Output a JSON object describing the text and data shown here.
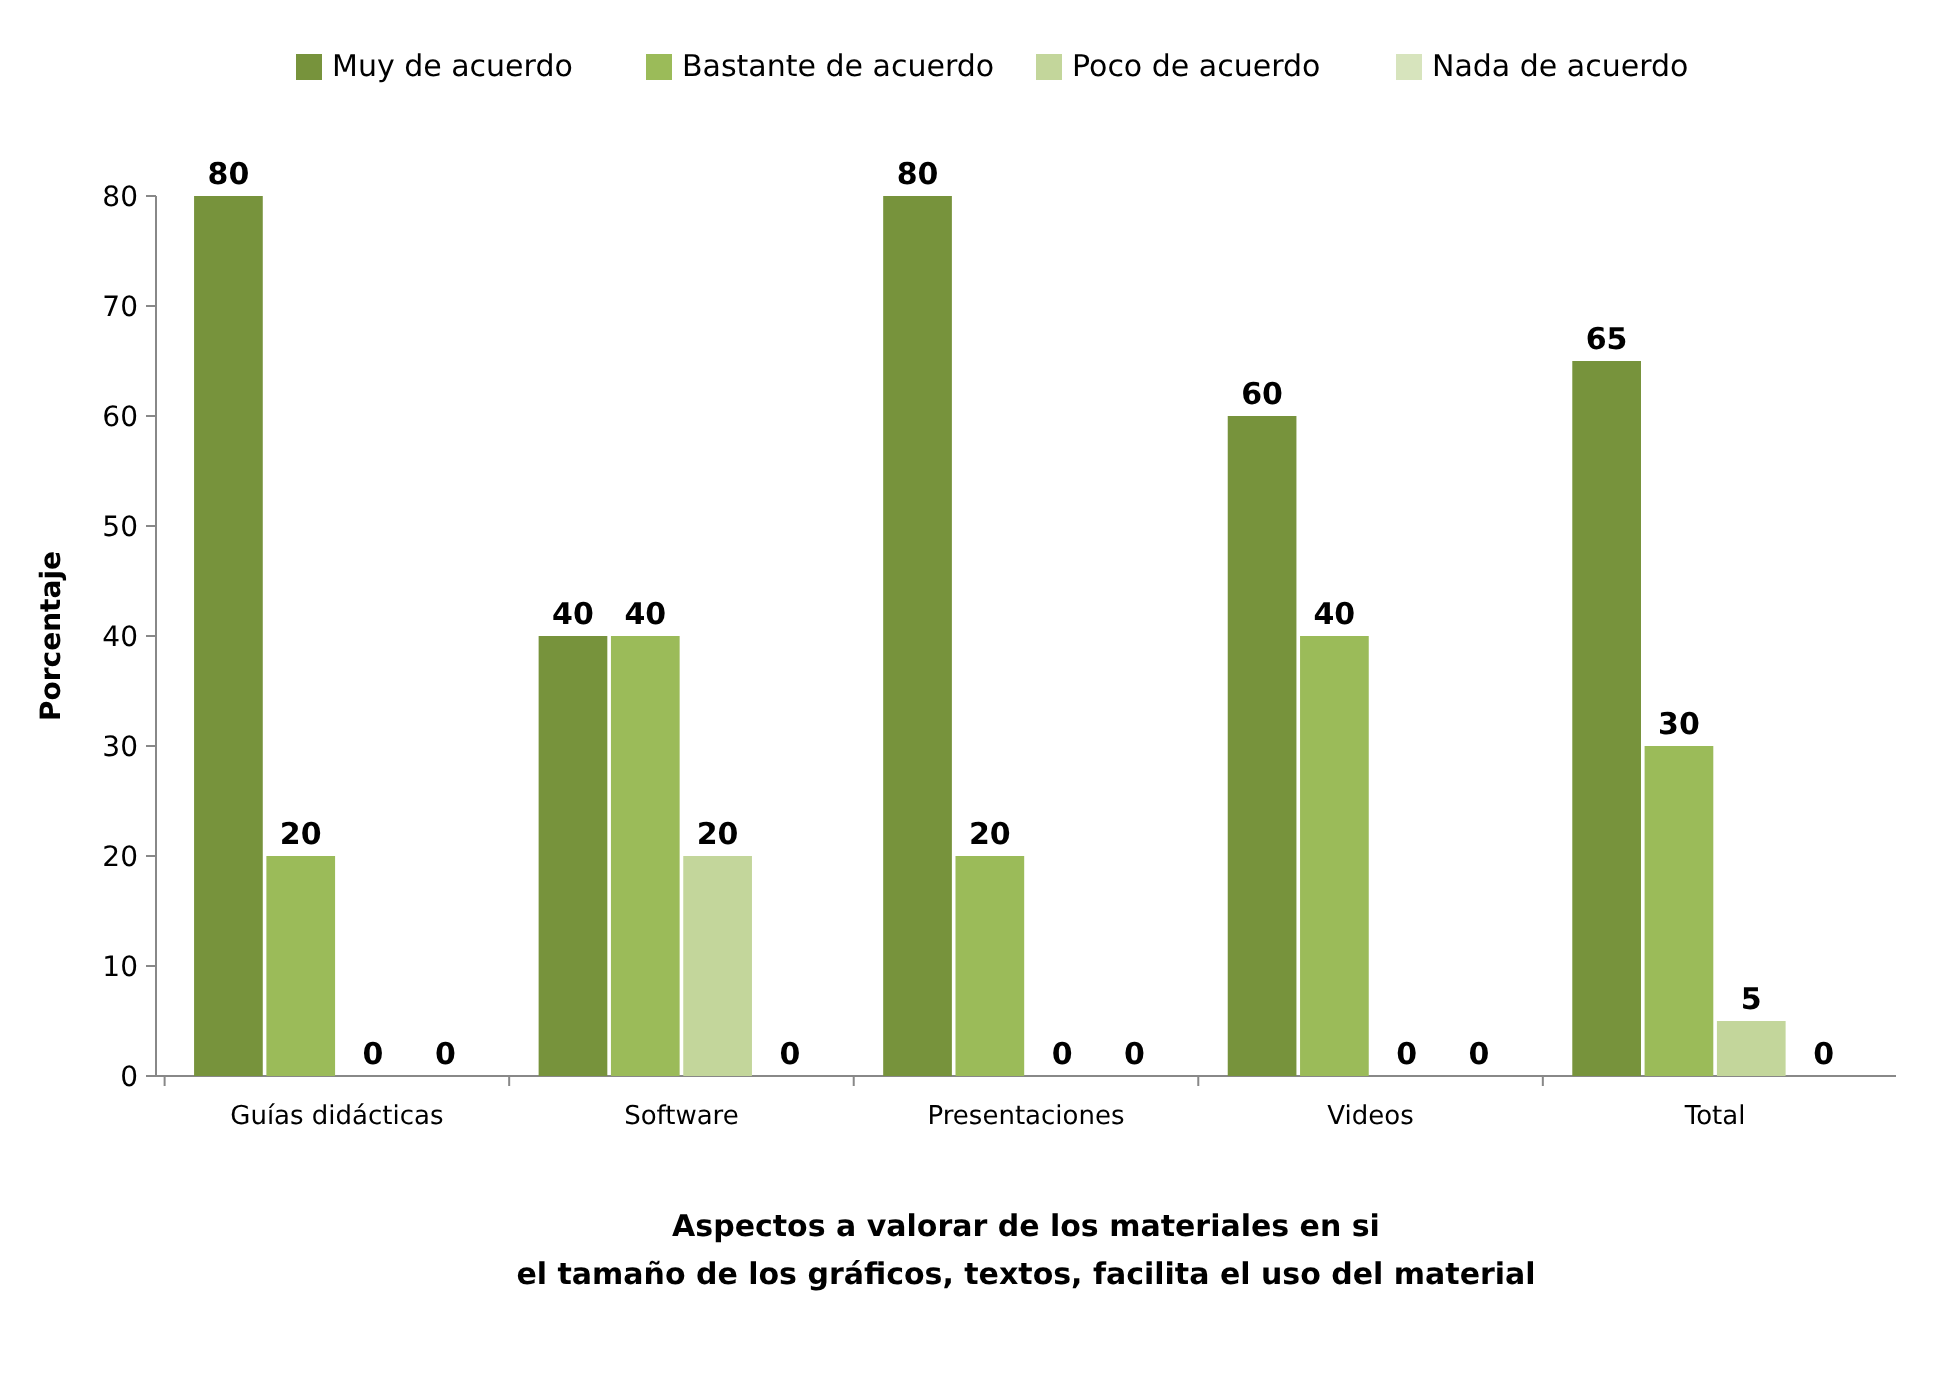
{
  "chart_data": {
    "type": "bar",
    "xlabel": "Aspectos a valorar de los materiales en si\nel tamaño de los gráficos, textos, facilita  el uso del material",
    "ylabel": "Porcentaje",
    "categories": [
      "Guías didácticas",
      "Software",
      "Presentaciones",
      "Videos",
      "Total"
    ],
    "series": [
      {
        "name": "Muy de acuerdo",
        "color": "#77933c",
        "values": [
          80,
          40,
          80,
          60,
          65
        ]
      },
      {
        "name": "Bastante  de acuerdo",
        "color": "#9bbb59",
        "values": [
          20,
          40,
          20,
          40,
          30
        ]
      },
      {
        "name": "Poco de acuerdo",
        "color": "#c3d69b",
        "values": [
          0,
          20,
          0,
          0,
          5
        ]
      },
      {
        "name": "Nada de acuerdo",
        "color": "#d7e4bd",
        "values": [
          0,
          0,
          0,
          0,
          0
        ]
      }
    ],
    "ylim": [
      0,
      80
    ],
    "yticks": [
      0,
      10,
      20,
      30,
      40,
      50,
      60,
      70,
      80
    ],
    "data_labels": true,
    "legend": "top",
    "grid": false
  }
}
